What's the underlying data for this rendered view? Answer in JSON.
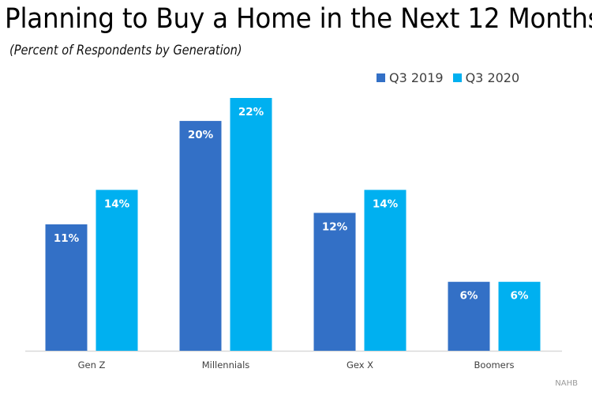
{
  "chart_data": {
    "type": "bar",
    "title": "Planning to Buy a Home in the Next 12 Months",
    "subtitle": "(Percent of Respondents by Generation)",
    "xlabel": "",
    "ylabel": "",
    "categories": [
      "Gen Z",
      "Millennials",
      "Gex X",
      "Boomers"
    ],
    "series": [
      {
        "name": "Q3 2019",
        "color": "#3370C6",
        "values": [
          11,
          20,
          12,
          6
        ],
        "labels": [
          "11%",
          "20%",
          "12%",
          "6%"
        ]
      },
      {
        "name": "Q3 2020",
        "color": "#00B0F0",
        "values": [
          14,
          22,
          14,
          6
        ],
        "labels": [
          "14%",
          "22%",
          "14%",
          "6%"
        ]
      }
    ],
    "ylim": [
      0,
      22
    ],
    "grid": false,
    "legend_position": "top-right",
    "source": "NAHB"
  }
}
